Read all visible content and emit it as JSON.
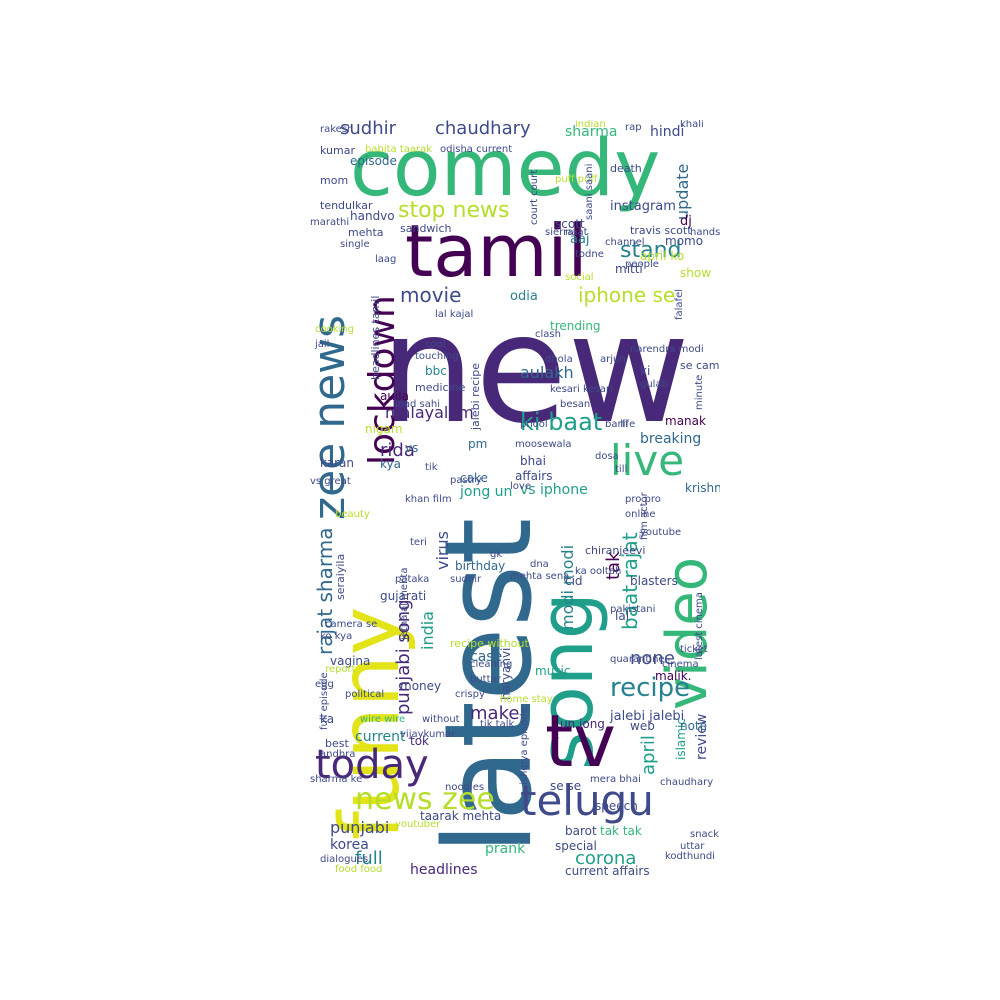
{
  "colors": {
    "background": "#ffffff",
    "palette": [
      "#440154",
      "#482878",
      "#3e4a89",
      "#31688e",
      "#26828e",
      "#1f9e89",
      "#35b779",
      "#6ece58",
      "#b5de2b",
      "#fde725"
    ]
  },
  "words": [
    {
      "text": "new",
      "color": "#482878",
      "size": 150
    },
    {
      "text": "latest",
      "color": "#31688e",
      "size": 120
    },
    {
      "text": "comedy",
      "color": "#35b779",
      "size": 78
    },
    {
      "text": "tamil",
      "color": "#440154",
      "size": 72
    },
    {
      "text": "funny",
      "color": "#e3e418",
      "size": 82
    },
    {
      "text": "song",
      "color": "#1f9e89",
      "size": 74
    },
    {
      "text": "tv",
      "color": "#440154",
      "size": 72
    },
    {
      "text": "telugu",
      "color": "#3e4a89",
      "size": 42
    },
    {
      "text": "video",
      "color": "#35b779",
      "size": 56
    },
    {
      "text": "live",
      "color": "#35b779",
      "size": 42
    },
    {
      "text": "zee news",
      "color": "#31688e",
      "size": 44
    },
    {
      "text": "lockdown",
      "color": "#440154",
      "size": 36
    },
    {
      "text": "today",
      "color": "#482878",
      "size": 40
    },
    {
      "text": "news zee",
      "color": "#b5de2b",
      "size": 30
    },
    {
      "text": "stop news",
      "color": "#b5de2b",
      "size": 22
    },
    {
      "text": "stand",
      "color": "#26828e",
      "size": 22
    },
    {
      "text": "iphone se",
      "color": "#b5de2b",
      "size": 20
    },
    {
      "text": "movie",
      "color": "#3e4a89",
      "size": 20
    },
    {
      "text": "ki baat",
      "color": "#1f9e89",
      "size": 24
    },
    {
      "text": "recipe",
      "color": "#26828e",
      "size": 26
    },
    {
      "text": "sudhir",
      "color": "#3e4a89",
      "size": 18
    },
    {
      "text": "chaudhary",
      "color": "#3e4a89",
      "size": 18
    },
    {
      "text": "sharma",
      "color": "#35b779",
      "size": 14
    },
    {
      "text": "hindi",
      "color": "#3e4a89",
      "size": 14
    },
    {
      "text": "update",
      "color": "#31688e",
      "size": 16
    },
    {
      "text": "episode",
      "color": "#31688e",
      "size": 12
    },
    {
      "text": "rajat sharma",
      "color": "#31688e",
      "size": 20
    },
    {
      "text": "punjabi song",
      "color": "#482878",
      "size": 18
    },
    {
      "text": "india",
      "color": "#1f9e89",
      "size": 16
    },
    {
      "text": "virus",
      "color": "#3e4a89",
      "size": 16
    },
    {
      "text": "modi modi",
      "color": "#26828e",
      "size": 16
    },
    {
      "text": "baat rajat",
      "color": "#1f9e89",
      "size": 20
    },
    {
      "text": "tak",
      "color": "#440154",
      "size": 18
    },
    {
      "text": "none",
      "color": "#3e4a89",
      "size": 18
    },
    {
      "text": "make",
      "color": "#482878",
      "size": 18
    },
    {
      "text": "april",
      "color": "#1f9e89",
      "size": 18
    },
    {
      "text": "review",
      "color": "#3e4a89",
      "size": 14
    },
    {
      "text": "aulakh",
      "color": "#31688e",
      "size": 16
    },
    {
      "text": "malayalam",
      "color": "#482878",
      "size": 16
    },
    {
      "text": "breaking",
      "color": "#31688e",
      "size": 14
    },
    {
      "text": "rida",
      "color": "#482878",
      "size": 18
    },
    {
      "text": "jong un",
      "color": "#1f9e89",
      "size": 14
    },
    {
      "text": "vs iphone",
      "color": "#1f9e89",
      "size": 14
    },
    {
      "text": "krishna",
      "color": "#31688e",
      "size": 12
    },
    {
      "text": "punjabi",
      "color": "#3e4a89",
      "size": 16
    },
    {
      "text": "full",
      "color": "#26828e",
      "size": 18
    },
    {
      "text": "prank",
      "color": "#35b779",
      "size": 14
    },
    {
      "text": "corona",
      "color": "#1f9e89",
      "size": 18
    },
    {
      "text": "headlines",
      "color": "#482878",
      "size": 14
    },
    {
      "text": "current affairs",
      "color": "#3e4a89",
      "size": 12
    },
    {
      "text": "korea",
      "color": "#3e4a89",
      "size": 14
    },
    {
      "text": "taarak mehta",
      "color": "#3e4a89",
      "size": 12
    },
    {
      "text": "speech",
      "color": "#3e4a89",
      "size": 12
    },
    {
      "text": "special",
      "color": "#3e4a89",
      "size": 12
    },
    {
      "text": "tak tak",
      "color": "#35b779",
      "size": 12
    },
    {
      "text": "barot",
      "color": "#3e4a89",
      "size": 12
    },
    {
      "text": "jalebi jalebi",
      "color": "#3e4a89",
      "size": 13
    },
    {
      "text": "islamic",
      "color": "#1f9e89",
      "size": 12
    },
    {
      "text": "note",
      "color": "#31688e",
      "size": 12
    },
    {
      "text": "web",
      "color": "#3e4a89",
      "size": 12
    },
    {
      "text": "un jong",
      "color": "#482878",
      "size": 12
    },
    {
      "text": "money",
      "color": "#3e4a89",
      "size": 12
    },
    {
      "text": "current",
      "color": "#26828e",
      "size": 14
    },
    {
      "text": "tok",
      "color": "#482878",
      "size": 12
    },
    {
      "text": "gujarati",
      "color": "#3e4a89",
      "size": 12
    },
    {
      "text": "vagina",
      "color": "#3e4a89",
      "size": 12
    },
    {
      "text": "case",
      "color": "#31688e",
      "size": 14
    },
    {
      "text": "music",
      "color": "#1f9e89",
      "size": 12
    },
    {
      "text": "malik.",
      "color": "#440154",
      "size": 12
    },
    {
      "text": "birthday",
      "color": "#31688e",
      "size": 12
    },
    {
      "text": "cid",
      "color": "#3e4a89",
      "size": 12
    },
    {
      "text": "blasters",
      "color": "#3e4a89",
      "size": 12
    },
    {
      "text": "pm",
      "color": "#31688e",
      "size": 12
    },
    {
      "text": "bhai",
      "color": "#3e4a89",
      "size": 12
    },
    {
      "text": "cake",
      "color": "#31688e",
      "size": 12
    },
    {
      "text": "affairs",
      "color": "#3e4a89",
      "size": 12
    },
    {
      "text": "karan",
      "color": "#3e4a89",
      "size": 12
    },
    {
      "text": "kya",
      "color": "#31688e",
      "size": 12
    },
    {
      "text": "vs",
      "color": "#31688e",
      "size": 12
    },
    {
      "text": "nigam",
      "color": "#b5de2b",
      "size": 12
    },
    {
      "text": "manak",
      "color": "#440154",
      "size": 12
    },
    {
      "text": "aujla",
      "color": "#440154",
      "size": 12
    },
    {
      "text": "bbc",
      "color": "#26828e",
      "size": 12
    },
    {
      "text": "odia",
      "color": "#26828e",
      "size": 13
    },
    {
      "text": "trending",
      "color": "#35b779",
      "size": 12
    },
    {
      "text": "aaj",
      "color": "#26828e",
      "size": 13
    },
    {
      "text": "mitti",
      "color": "#3e4a89",
      "size": 12
    },
    {
      "text": "show",
      "color": "#b5de2b",
      "size": 12
    },
    {
      "text": "april ko",
      "color": "#b5de2b",
      "size": 12
    },
    {
      "text": "instagram",
      "color": "#3e4a89",
      "size": 13
    },
    {
      "text": "scott",
      "color": "#3e4a89",
      "size": 12
    },
    {
      "text": "dj",
      "color": "#440154",
      "size": 13
    },
    {
      "text": "momo",
      "color": "#3e4a89",
      "size": 12
    },
    {
      "text": "handvo",
      "color": "#3e4a89",
      "size": 12
    },
    {
      "text": "mehta",
      "color": "#3e4a89",
      "size": 11
    },
    {
      "text": "sandwich",
      "color": "#3e4a89",
      "size": 11
    },
    {
      "text": "mom",
      "color": "#3e4a89",
      "size": 11
    },
    {
      "text": "death",
      "color": "#3e4a89",
      "size": 11
    },
    {
      "text": "tendulkar",
      "color": "#3e4a89",
      "size": 11
    },
    {
      "text": "marathi",
      "color": "#3e4a89",
      "size": 10
    },
    {
      "text": "channel",
      "color": "#3e4a89",
      "size": 10
    },
    {
      "text": "single",
      "color": "#3e4a89",
      "size": 10
    },
    {
      "text": "laag",
      "color": "#3e4a89",
      "size": 10
    },
    {
      "text": "travis scott",
      "color": "#3e4a89",
      "size": 11
    },
    {
      "text": "se camera",
      "color": "#3e4a89",
      "size": 11
    },
    {
      "text": "arjun",
      "color": "#3e4a89",
      "size": 10
    },
    {
      "text": "narendra modi",
      "color": "#3e4a89",
      "size": 10
    },
    {
      "text": "lal kajal",
      "color": "#3e4a89",
      "size": 10
    },
    {
      "text": "medicine",
      "color": "#3e4a89",
      "size": 11
    },
    {
      "text": "headlines tamil",
      "color": "#3e4a89",
      "size": 11
    },
    {
      "text": "jalebi recipe",
      "color": "#3e4a89",
      "size": 11
    },
    {
      "text": "kesari kesari",
      "color": "#3e4a89",
      "size": 10
    },
    {
      "text": "besan",
      "color": "#3e4a89",
      "size": 10
    },
    {
      "text": "phool",
      "color": "#3e4a89",
      "size": 10
    },
    {
      "text": "barfi",
      "color": "#3e4a89",
      "size": 10
    },
    {
      "text": "moosewala",
      "color": "#3e4a89",
      "size": 10
    },
    {
      "text": "dosa",
      "color": "#3e4a89",
      "size": 10
    },
    {
      "text": "till",
      "color": "#3e4a89",
      "size": 10
    },
    {
      "text": "pro pro",
      "color": "#3e4a89",
      "size": 10
    },
    {
      "text": "online",
      "color": "#3e4a89",
      "size": 10
    },
    {
      "text": "chiranjeevi",
      "color": "#3e4a89",
      "size": 11
    },
    {
      "text": "pakistani",
      "color": "#3e4a89",
      "size": 10
    },
    {
      "text": "latest cinema",
      "color": "#3e4a89",
      "size": 10
    },
    {
      "text": "quarantine",
      "color": "#3e4a89",
      "size": 10
    },
    {
      "text": "haryanvi",
      "color": "#3e4a89",
      "size": 12
    },
    {
      "text": "seraiyila",
      "color": "#3e4a89",
      "size": 11
    },
    {
      "text": "ko kya",
      "color": "#3e4a89",
      "size": 10
    },
    {
      "text": "recipe without",
      "color": "#b5de2b",
      "size": 11
    },
    {
      "text": "home stay",
      "color": "#b5de2b",
      "size": 10
    },
    {
      "text": "without",
      "color": "#3e4a89",
      "size": 10
    },
    {
      "text": "wire wire",
      "color": "#35b779",
      "size": 10
    },
    {
      "text": "vijaykumar",
      "color": "#3e4a89",
      "size": 10
    },
    {
      "text": "best",
      "color": "#3e4a89",
      "size": 11
    },
    {
      "text": "ka",
      "color": "#3e4a89",
      "size": 12
    },
    {
      "text": "andhra",
      "color": "#3e4a89",
      "size": 10
    },
    {
      "text": "sharma ke",
      "color": "#3e4a89",
      "size": 10
    },
    {
      "text": "noodles",
      "color": "#3e4a89",
      "size": 10
    },
    {
      "text": "youtuber",
      "color": "#b5de2b",
      "size": 10
    },
    {
      "text": "dialogues",
      "color": "#3e4a89",
      "size": 10
    },
    {
      "text": "food food",
      "color": "#b5de2b",
      "size": 10
    },
    {
      "text": "snack",
      "color": "#3e4a89",
      "size": 10
    },
    {
      "text": "uttar",
      "color": "#3e4a89",
      "size": 10
    },
    {
      "text": "kodthundi",
      "color": "#3e4a89",
      "size": 10
    },
    {
      "text": "political",
      "color": "#3e4a89",
      "size": 10
    },
    {
      "text": "cooking",
      "color": "#b5de2b",
      "size": 10
    },
    {
      "text": "jail",
      "color": "#3e4a89",
      "size": 10
    },
    {
      "text": "beauty",
      "color": "#b5de2b",
      "size": 10
    },
    {
      "text": "teri",
      "color": "#3e4a89",
      "size": 10
    },
    {
      "text": "khan film",
      "color": "#3e4a89",
      "size": 10
    },
    {
      "text": "love",
      "color": "#3e4a89",
      "size": 10
    },
    {
      "text": "youtube",
      "color": "#3e4a89",
      "size": 10
    },
    {
      "text": "sudhir",
      "color": "#3e4a89",
      "size": 10
    },
    {
      "text": "dna",
      "color": "#3e4a89",
      "size": 10
    },
    {
      "text": "mehta sena",
      "color": "#3e4a89",
      "size": 10
    },
    {
      "text": "crispy",
      "color": "#3e4a89",
      "size": 10
    },
    {
      "text": "buttar",
      "color": "#3e4a89",
      "size": 10
    },
    {
      "text": "cleaning",
      "color": "#3e4a89",
      "size": 10
    },
    {
      "text": "cinema",
      "color": "#3e4a89",
      "size": 10
    },
    {
      "text": "ticket",
      "color": "#3e4a89",
      "size": 10
    },
    {
      "text": "rakesh",
      "color": "#3e4a89",
      "size": 10
    },
    {
      "text": "khali",
      "color": "#3e4a89",
      "size": 10
    },
    {
      "text": "rap",
      "color": "#3e4a89",
      "size": 10
    },
    {
      "text": "puff puff",
      "color": "#b5de2b",
      "size": 10
    },
    {
      "text": "people",
      "color": "#3e4a89",
      "size": 10
    },
    {
      "text": "social",
      "color": "#b5de2b",
      "size": 10
    },
    {
      "text": "todne",
      "color": "#3e4a89",
      "size": 10
    },
    {
      "text": "naat",
      "color": "#3e4a89",
      "size": 10
    },
    {
      "text": "sierra",
      "color": "#3e4a89",
      "size": 10
    },
    {
      "text": "hands",
      "color": "#3e4a89",
      "size": 10
    },
    {
      "text": "full episode",
      "color": "#3e4a89",
      "size": 10
    },
    {
      "text": "egg",
      "color": "#3e4a89",
      "size": 10
    },
    {
      "text": "report",
      "color": "#b5de2b",
      "size": 10
    },
    {
      "text": "camera se",
      "color": "#3e4a89",
      "size": 10
    },
    {
      "text": "jethalal mehta",
      "color": "#3e4a89",
      "size": 10
    },
    {
      "text": "clash",
      "color": "#3e4a89",
      "size": 10
    },
    {
      "text": "touching",
      "color": "#3e4a89",
      "size": 10
    },
    {
      "text": "cool",
      "color": "#3e4a89",
      "size": 10
    },
    {
      "text": "load sahi",
      "color": "#3e4a89",
      "size": 10
    },
    {
      "text": "gulab",
      "color": "#3e4a89",
      "size": 10
    },
    {
      "text": "falafel",
      "color": "#3e4a89",
      "size": 10
    },
    {
      "text": "minute",
      "color": "#3e4a89",
      "size": 10
    },
    {
      "text": "life",
      "color": "#3e4a89",
      "size": 10
    },
    {
      "text": "tik",
      "color": "#3e4a89",
      "size": 10
    },
    {
      "text": "pastry",
      "color": "#3e4a89",
      "size": 10
    },
    {
      "text": "vs great",
      "color": "#3e4a89",
      "size": 10
    },
    {
      "text": "film actor",
      "color": "#3e4a89",
      "size": 10
    },
    {
      "text": "ka ooltah",
      "color": "#3e4a89",
      "size": 10
    },
    {
      "text": "mera bhai",
      "color": "#3e4a89",
      "size": 10
    },
    {
      "text": "ishqiya episode",
      "color": "#3e4a89",
      "size": 10
    },
    {
      "text": "tik talk",
      "color": "#3e4a89",
      "size": 10
    },
    {
      "text": "chaudhary",
      "color": "#3e4a89",
      "size": 10
    },
    {
      "text": "lal",
      "color": "#3e4a89",
      "size": 12
    },
    {
      "text": "se se",
      "color": "#3e4a89",
      "size": 12
    },
    {
      "text": "ki",
      "color": "#3e4a89",
      "size": 12
    },
    {
      "text": "kumar",
      "color": "#3e4a89",
      "size": 11
    },
    {
      "text": "babita taarak",
      "color": "#b5de2b",
      "size": 10
    },
    {
      "text": "odisha current",
      "color": "#3e4a89",
      "size": 10
    },
    {
      "text": "pataka",
      "color": "#3e4a89",
      "size": 10
    },
    {
      "text": "indian",
      "color": "#b5de2b",
      "size": 10
    },
    {
      "text": "court court",
      "color": "#3e4a89",
      "size": 10
    },
    {
      "text": "saani saani",
      "color": "#3e4a89",
      "size": 10
    },
    {
      "text": "dhola",
      "color": "#3e4a89",
      "size": 10
    },
    {
      "text": "gk",
      "color": "#3e4a89",
      "size": 10
    }
  ]
}
